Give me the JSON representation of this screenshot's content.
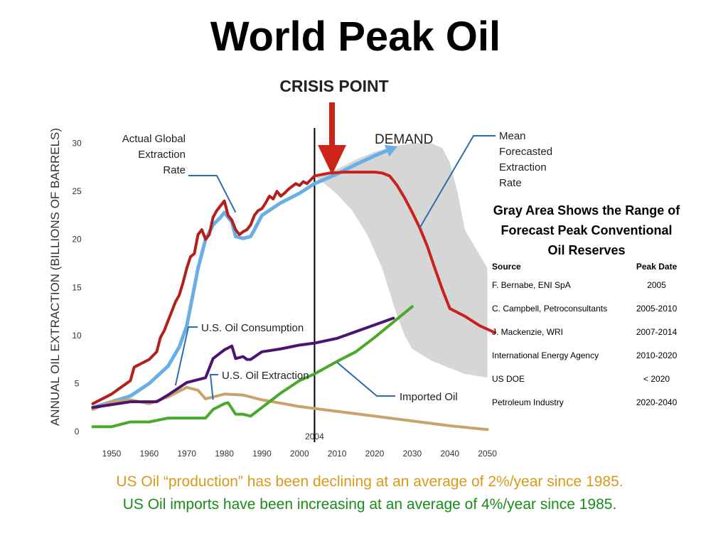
{
  "title": "World Peak Oil",
  "crisis_label": "CRISIS POINT",
  "reserves_note": "Gray Area Shows the Range of Forecast Peak Conventional Oil Reserves",
  "table": {
    "headers": [
      "Source",
      "Peak Date"
    ],
    "rows": [
      [
        "F. Bernabe, ENI SpA",
        "2005"
      ],
      [
        "C. Campbell, Petroconsultants",
        "2005-2010"
      ],
      [
        "J. Mackenzie, WRI",
        "2007-2014"
      ],
      [
        "International Energy Agency",
        "2010-2020"
      ],
      [
        "US DOE",
        "< 2020"
      ],
      [
        "Petroleum Industry",
        "2020-2040"
      ]
    ]
  },
  "footer": {
    "line1": "US Oil “production” has been declining at an average of 2%/year since 1985.",
    "line2": "US Oil imports have been increasing at an average of 4%/year since 1985."
  },
  "colors": {
    "actual": "#b3201c",
    "mean_forecast": "#c8221c",
    "demand": "#6aaee6",
    "us_consumption": "#4a1570",
    "us_extraction": "#c9a46a",
    "imported": "#4aa82c",
    "band": "#d6d6d6",
    "callout": "#2c6db0",
    "arrow": "#cc2418",
    "footer1": "#d99a1c",
    "footer2": "#1a8c1a"
  },
  "chart_data": {
    "type": "line",
    "ylabel": "ANNUAL OIL EXTRACTION (BILLIONS OF BARRELS)",
    "xlabel": "",
    "xlim": [
      1943,
      2055
    ],
    "ylim": [
      0,
      31
    ],
    "x_ticks": [
      1950,
      1960,
      1970,
      1980,
      1990,
      2000,
      2010,
      2020,
      2030,
      2040,
      2050
    ],
    "y_ticks": [
      0,
      5,
      10,
      15,
      20,
      25,
      30
    ],
    "marker_year": 2004,
    "marker_label": "2004",
    "series": [
      {
        "name": "Actual Global Extraction Rate",
        "key": "actual",
        "x": [
          1945,
          1950,
          1955,
          1956,
          1960,
          1962,
          1963,
          1964,
          1966,
          1967,
          1968,
          1969,
          1970,
          1971,
          1972,
          1973,
          1974,
          1975,
          1976,
          1977,
          1978,
          1979,
          1980,
          1981,
          1982,
          1983,
          1984,
          1985,
          1986,
          1987,
          1988,
          1989,
          1990,
          1991,
          1992,
          1993,
          1994,
          1995,
          1996,
          1997,
          1998,
          1999,
          2000,
          2001,
          2002,
          2003,
          2004
        ],
        "y": [
          2.9,
          3.9,
          5.3,
          6.7,
          7.5,
          8.3,
          9.8,
          10.5,
          12.5,
          13.5,
          14.2,
          15.5,
          17,
          18.2,
          18.5,
          20.5,
          21,
          20,
          20.5,
          22.3,
          23,
          23.5,
          24,
          22.5,
          22,
          21,
          20.5,
          20.8,
          21,
          21.5,
          22.5,
          23,
          23.2,
          23.8,
          24.5,
          24.2,
          25,
          24.5,
          24.8,
          25.2,
          25.5,
          25.8,
          25.6,
          26,
          25.8,
          26.2,
          26.6
        ]
      },
      {
        "name": "Demand",
        "key": "demand",
        "x": [
          1945,
          1950,
          1955,
          1960,
          1965,
          1968,
          1970,
          1973,
          1975,
          1977,
          1979,
          1980,
          1982,
          1983,
          1985,
          1987,
          1988,
          1990,
          1995,
          2000,
          2004,
          2010,
          2015,
          2020,
          2025
        ],
        "y": [
          2.5,
          3.1,
          3.7,
          5,
          6.8,
          8.8,
          11,
          17,
          20,
          21.5,
          22.3,
          22.8,
          21.8,
          20.3,
          20.1,
          20.3,
          21,
          22.5,
          23.8,
          24.8,
          25.8,
          26.8,
          27.8,
          28.7,
          29.5
        ]
      },
      {
        "name": "Mean Forecasted Extraction Rate",
        "key": "mean_forecast",
        "x": [
          2004,
          2008,
          2012,
          2016,
          2020,
          2022,
          2024,
          2026,
          2028,
          2030,
          2032,
          2034,
          2036,
          2038,
          2040,
          2044,
          2048,
          2052
        ],
        "y": [
          26.6,
          26.9,
          27.0,
          27.0,
          27.0,
          26.9,
          26.6,
          25.6,
          24.3,
          22.8,
          21.2,
          19.3,
          17.0,
          14.8,
          12.8,
          12.0,
          11.0,
          10.3
        ]
      },
      {
        "name": "U.S. Oil Consumption",
        "key": "us_consumption",
        "x": [
          1945,
          1950,
          1955,
          1957,
          1962,
          1965,
          1970,
          1975,
          1977,
          1980,
          1982,
          1983,
          1985,
          1986,
          1987,
          1990,
          1995,
          2000,
          2004,
          2010,
          2015,
          2020,
          2025
        ],
        "y": [
          2.5,
          2.8,
          3.1,
          3.1,
          3.1,
          3.8,
          5.1,
          5.6,
          7.6,
          8.5,
          8.9,
          7.6,
          7.8,
          7.5,
          7.5,
          8.3,
          8.6,
          9.0,
          9.2,
          9.7,
          10.4,
          11.1,
          11.8
        ]
      },
      {
        "name": "U.S. Oil Extraction",
        "key": "us_extraction",
        "x": [
          1945,
          1950,
          1955,
          1960,
          1965,
          1970,
          1973,
          1975,
          1980,
          1985,
          1990,
          2000,
          2010,
          2020,
          2030,
          2040,
          2050
        ],
        "y": [
          2.3,
          3.1,
          3.3,
          2.9,
          3.6,
          4.6,
          4.3,
          3.4,
          3.9,
          3.8,
          3.3,
          2.6,
          2.1,
          1.6,
          1.1,
          0.6,
          0.2
        ]
      },
      {
        "name": "Imported Oil",
        "key": "imported",
        "x": [
          1945,
          1950,
          1955,
          1960,
          1965,
          1970,
          1975,
          1977,
          1980,
          1981,
          1983,
          1984,
          1985,
          1986,
          1987,
          1990,
          1995,
          2000,
          2004,
          2010,
          2015,
          2020,
          2025,
          2030
        ],
        "y": [
          0.5,
          0.5,
          1.0,
          1.0,
          1.4,
          1.4,
          1.4,
          2.3,
          2.9,
          3.0,
          1.8,
          1.8,
          1.8,
          1.7,
          1.6,
          2.5,
          4.0,
          5.3,
          6.0,
          7.3,
          8.3,
          9.8,
          11.4,
          13.0
        ]
      }
    ],
    "forecast_band": {
      "label": "Gray Area Shows the Range of Forecast Peak Conventional Oil Reserves",
      "upper_x": [
        2004,
        2010,
        2015,
        2020,
        2025,
        2030,
        2035,
        2038,
        2040,
        2042,
        2044,
        2050
      ],
      "upper_y": [
        26.6,
        27.3,
        28.3,
        29.1,
        29.7,
        30.0,
        30.0,
        29.5,
        28.0,
        25.0,
        21.0,
        17.0
      ],
      "lower_x": [
        2050,
        2044,
        2040,
        2035,
        2030,
        2028,
        2026,
        2024,
        2022,
        2018,
        2014,
        2010,
        2006,
        2004
      ],
      "lower_y": [
        5.6,
        6.0,
        6.6,
        7.4,
        8.6,
        10.0,
        12.0,
        14.5,
        17.0,
        20.5,
        23.0,
        24.7,
        26.0,
        26.6
      ]
    },
    "annotations": [
      {
        "text": "Actual Global Extraction Rate",
        "series": "actual",
        "x": 1983,
        "y": 22.8
      },
      {
        "text": "DEMAND",
        "series": "demand",
        "x": 2025,
        "y": 29.5
      },
      {
        "text": "Mean Forecasted Extraction Rate",
        "series": "mean_forecast",
        "x": 2032,
        "y": 21.2
      },
      {
        "text": "U.S. Oil Consumption",
        "series": "us_consumption",
        "x": 1967,
        "y": 4.8
      },
      {
        "text": "U.S. Oil Extraction",
        "series": "us_extraction",
        "x": 1977,
        "y": 3.3
      },
      {
        "text": "Imported Oil",
        "series": "imported",
        "x": 2010,
        "y": 7.2
      }
    ]
  }
}
